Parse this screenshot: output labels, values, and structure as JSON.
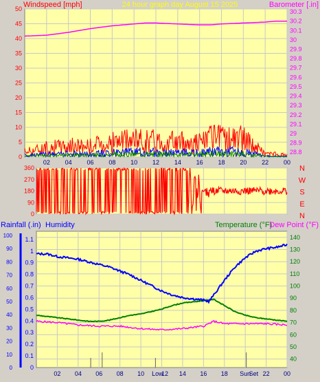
{
  "colors": {
    "background": "#d4d0c8",
    "plot_bg": "#ffffa8",
    "grid": "#c8c8c8",
    "wind": "#ff0000",
    "gust_band": "#0000ff",
    "calm": "#008000",
    "barometer": "#ff00ff",
    "humidity": "#0000ff",
    "rain": "#0000ff",
    "temperature": "#008000",
    "dew_point": "#ff00ff",
    "title": "#ffff00"
  },
  "chart_data": [
    {
      "type": "line",
      "panel": "wind-barometer",
      "title": "24 hour graph day   August 15 2025",
      "left_axis_label": "Windspeed [mph]",
      "right_axis_label": "Barometer [.in]",
      "left_ticks": [
        "0",
        "5",
        "10",
        "15",
        "20",
        "25",
        "30",
        "35",
        "40",
        "45",
        "50"
      ],
      "left_range": [
        0,
        50
      ],
      "right_ticks": [
        "28.8",
        "28.9",
        "29",
        "29.1",
        "29.2",
        "29.3",
        "29.4",
        "29.5",
        "29.6",
        "29.7",
        "29.8",
        "29.9",
        "30",
        "30.1",
        "30.2",
        "30.3"
      ],
      "right_range": [
        28.75,
        30.33
      ],
      "x_ticks": [
        "02",
        "04",
        "06",
        "08",
        "10",
        "12",
        "14",
        "16",
        "18",
        "20",
        "22",
        "00"
      ],
      "x_range_hours": [
        0,
        24
      ],
      "grid": true,
      "barometer": {
        "x": [
          0,
          2,
          4,
          6,
          8,
          10,
          11,
          12,
          14,
          16,
          17,
          18,
          20,
          22,
          23,
          24
        ],
        "y": [
          30.04,
          30.05,
          30.08,
          30.12,
          30.15,
          30.17,
          30.18,
          30.18,
          30.17,
          30.16,
          30.16,
          30.17,
          30.18,
          30.19,
          30.2,
          30.2
        ]
      },
      "wind_envelope": {
        "x": [
          0,
          2,
          4,
          6,
          8,
          10,
          12,
          14,
          16,
          17,
          18,
          20,
          22,
          24
        ],
        "y": [
          3,
          5,
          6,
          6,
          8,
          9,
          9,
          8,
          8,
          10,
          10,
          10,
          2,
          1
        ]
      }
    },
    {
      "type": "scatter",
      "panel": "wind-direction",
      "left_ticks": [
        "0",
        "90",
        "180",
        "270",
        "360"
      ],
      "left_range": [
        0,
        360
      ],
      "right_ticks": [
        "N",
        "W",
        "S",
        "E",
        "N"
      ],
      "x_range_hours": [
        0,
        24
      ],
      "grid": true,
      "direction_settled_deg": 180
    },
    {
      "type": "line",
      "panel": "temperature-humidity",
      "left_axis_label": "Rainfall (.in)",
      "humidity_label": "Humidity",
      "temperature_label": "Temperature (°F)",
      "dew_point_label": "Dew Point (°F)",
      "left_ticks": [
        "0",
        "0.1",
        "0.2",
        "0.3",
        "0.4",
        "0.5",
        "0.6",
        "0.7",
        "0.8",
        "0.9",
        "1",
        "1.1"
      ],
      "left_range": [
        0,
        1.17
      ],
      "humidity_ticks": [
        "0",
        "10",
        "20",
        "30",
        "40",
        "50",
        "60",
        "70",
        "80",
        "90",
        "100"
      ],
      "right_ticks": [
        "40",
        "50",
        "60",
        "70",
        "80",
        "90",
        "100",
        "110",
        "120",
        "130",
        "140"
      ],
      "right_range": [
        33,
        145
      ],
      "x_ticks": [
        "02",
        "04",
        "06",
        "08",
        "10",
        "Low",
        "12",
        "14",
        "16",
        "18",
        "Sun",
        "Set",
        "22",
        "00"
      ],
      "x_range_hours": [
        0,
        24
      ],
      "grid": true,
      "humidity": {
        "x": [
          0,
          1,
          2,
          3,
          4,
          5,
          6,
          7,
          8,
          9,
          10,
          11,
          12,
          13,
          14,
          15,
          16,
          16.5,
          17,
          18,
          19,
          20,
          21,
          22,
          23,
          24
        ],
        "y": [
          86,
          86,
          84,
          83,
          82,
          80,
          78,
          76,
          73,
          70,
          66,
          62,
          58,
          55,
          53,
          52,
          51,
          50,
          55,
          66,
          76,
          83,
          88,
          90,
          91,
          93
        ]
      },
      "temperature": {
        "x": [
          0,
          1,
          2,
          3,
          4,
          5,
          6,
          7,
          8,
          9,
          10,
          11,
          12,
          13,
          14,
          15,
          16,
          17,
          18,
          19,
          20,
          21,
          22,
          23,
          24
        ],
        "y": [
          76,
          75,
          74,
          73,
          72,
          71,
          71,
          72,
          74,
          76,
          77,
          79,
          81,
          84,
          86,
          87,
          88,
          89,
          84,
          79,
          76,
          74,
          73,
          72,
          71
        ]
      },
      "dew_point": {
        "x": [
          0,
          2,
          4,
          6,
          8,
          10,
          12,
          14,
          16,
          17,
          18,
          20,
          22,
          24
        ],
        "y": [
          71,
          70,
          68,
          67,
          67,
          65,
          64,
          65,
          67,
          71,
          69,
          69,
          69,
          68
        ]
      },
      "rain_marks_hours": [
        5.2,
        6.3,
        11.4,
        20.1
      ]
    }
  ]
}
